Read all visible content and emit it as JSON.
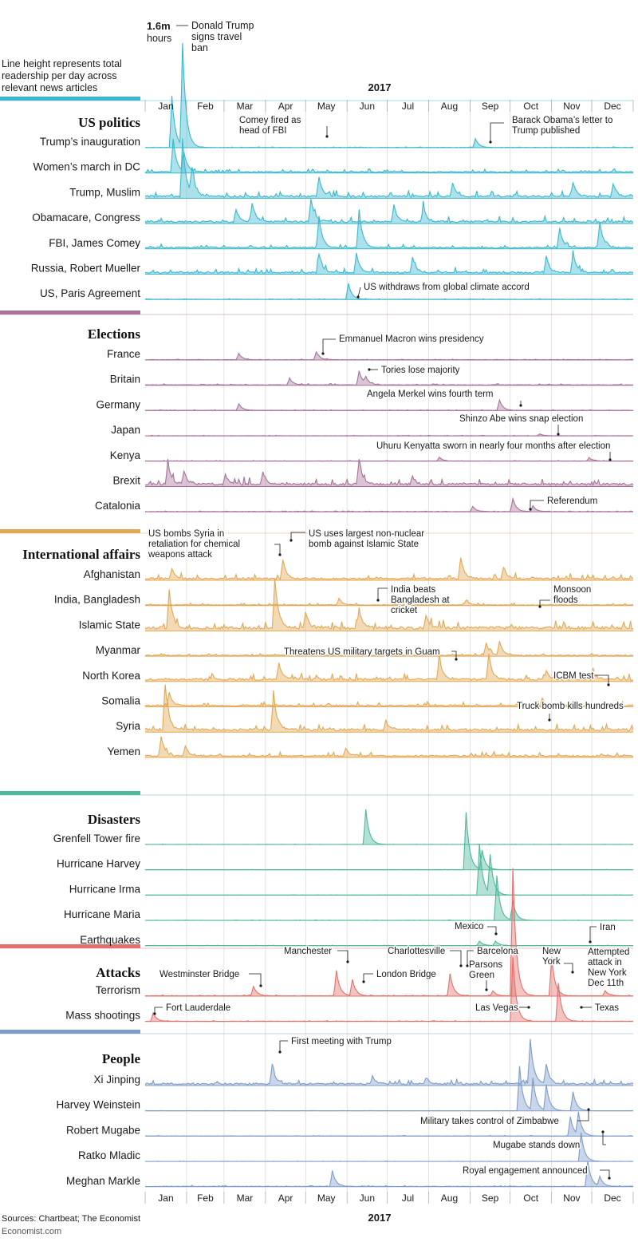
{
  "chart_data": {
    "type": "area",
    "year_label": "2017",
    "months": [
      "Jan",
      "Feb",
      "Mar",
      "Apr",
      "May",
      "Jun",
      "Jul",
      "Aug",
      "Sep",
      "Oct",
      "Nov",
      "Dec"
    ],
    "scale_value": "1.6m",
    "scale_unit": "hours",
    "scale_event": "Donald Trump signs travel ban",
    "note": "Line height represents total readership per day across relevant news articles",
    "source": "Sources: Chartbeat; The Economist",
    "credit": "Economist.com",
    "groups": [
      {
        "title": "US politics",
        "color": "#3ab8cf",
        "series": [
          {
            "name": "Trump’s inauguration",
            "peaks": [
              [
                20,
                8
              ],
              [
                28,
                16
              ],
              [
                247,
                1.4
              ]
            ],
            "noise": 0.05
          },
          {
            "name": "Women’s march in DC",
            "peaks": [
              [
                21,
                5
              ],
              [
                29,
                3
              ]
            ],
            "noise": 0.25
          },
          {
            "name": "Trump, Muslim",
            "peaks": [
              [
                28,
                9
              ],
              [
                35,
                4
              ],
              [
                130,
                3
              ],
              [
                230,
                2
              ],
              [
                320,
                2.2
              ],
              [
                350,
                2
              ]
            ],
            "noise": 0.45
          },
          {
            "name": "Obamacare, Congress",
            "peaks": [
              [
                68,
                2
              ],
              [
                80,
                3
              ],
              [
                124,
                3.5
              ],
              [
                186,
                2.6
              ],
              [
                208,
                2.4
              ]
            ],
            "noise": 0.45
          },
          {
            "name": "FBI, James Comey",
            "peaks": [
              [
                130,
                5
              ],
              [
                160,
                6
              ],
              [
                310,
                3
              ],
              [
                340,
                4
              ]
            ],
            "noise": 0.3
          },
          {
            "name": "Russia, Robert Mueller",
            "peaks": [
              [
                130,
                3
              ],
              [
                158,
                3
              ],
              [
                200,
                2.4
              ],
              [
                300,
                2.5
              ],
              [
                320,
                3
              ]
            ],
            "noise": 0.4
          },
          {
            "name": "US, Paris Agreement",
            "peaks": [
              [
                152,
                2.5
              ]
            ],
            "noise": 0.05
          }
        ]
      },
      {
        "title": "Elections",
        "color": "#a8729a",
        "series": [
          {
            "name": "France",
            "peaks": [
              [
                70,
                1
              ],
              [
                128,
                1.2
              ]
            ],
            "noise": 0.06
          },
          {
            "name": "Britain",
            "peaks": [
              [
                108,
                1
              ],
              [
                160,
                2.2
              ],
              [
                165,
                1
              ]
            ],
            "noise": 0.1
          },
          {
            "name": "Germany",
            "peaks": [
              [
                70,
                1
              ],
              [
                265,
                1.6
              ]
            ],
            "noise": 0.06
          },
          {
            "name": "Japan",
            "peaks": [
              [
                295,
                0.3
              ]
            ],
            "noise": 0.03
          },
          {
            "name": "Kenya",
            "peaks": [
              [
                220,
                0.6
              ],
              [
                332,
                0.5
              ]
            ],
            "noise": 0.04
          },
          {
            "name": "Brexit",
            "peaks": [
              [
                17,
                3.5
              ],
              [
                29,
                2
              ],
              [
                60,
                1.5
              ],
              [
                88,
                2
              ],
              [
                160,
                4
              ],
              [
                200,
                1.2
              ]
            ],
            "noise": 0.55
          },
          {
            "name": "Catalonia",
            "peaks": [
              [
                245,
                0.8
              ],
              [
                275,
                2
              ],
              [
                290,
                0.9
              ]
            ],
            "noise": 0.06
          }
        ]
      },
      {
        "title": "International affairs",
        "color": "#e3a853",
        "series": [
          {
            "name": "Afghanistan",
            "peaks": [
              [
                20,
                1.6
              ],
              [
                103,
                3
              ],
              [
                236,
                3.2
              ],
              [
                268,
                1.8
              ]
            ],
            "noise": 0.4
          },
          {
            "name": "India, Bangladesh",
            "peaks": [
              [
                145,
                1
              ],
              [
                240,
                0.8
              ]
            ],
            "noise": 0.15
          },
          {
            "name": "Islamic State",
            "peaks": [
              [
                18,
                6
              ],
              [
                97,
                8
              ],
              [
                120,
                2.5
              ],
              [
                160,
                3
              ],
              [
                210,
                2
              ]
            ],
            "noise": 0.7
          },
          {
            "name": "Myanmar",
            "peaks": [
              [
                255,
                2
              ],
              [
                265,
                2.2
              ]
            ],
            "noise": 0.2
          },
          {
            "name": "North Korea",
            "peaks": [
              [
                100,
                2.5
              ],
              [
                220,
                3.5
              ],
              [
                257,
                4
              ],
              [
                300,
                1.5
              ],
              [
                335,
                1.2
              ]
            ],
            "noise": 0.5
          },
          {
            "name": "Somalia",
            "peaks": [
              [
                18,
                2
              ],
              [
                297,
                1
              ]
            ],
            "noise": 0.3
          },
          {
            "name": "Syria",
            "peaks": [
              [
                15,
                7
              ],
              [
                96,
                6
              ],
              [
                180,
                1.5
              ]
            ],
            "noise": 0.55
          },
          {
            "name": "Yemen",
            "peaks": [
              [
                12,
                3
              ],
              [
                30,
                1.6
              ],
              [
                150,
                1.3
              ]
            ],
            "noise": 0.35
          }
        ]
      },
      {
        "title": "Disasters",
        "color": "#4db89a",
        "series": [
          {
            "name": "Grenfell Tower fire",
            "peaks": [
              [
                165,
                5.5
              ]
            ],
            "noise": 0.02
          },
          {
            "name": "Hurricane Harvey",
            "peaks": [
              [
                240,
                9
              ],
              [
                252,
                3
              ]
            ],
            "noise": 0.02
          },
          {
            "name": "Hurricane Irma",
            "peaks": [
              [
                250,
                8
              ],
              [
                258,
                6
              ]
            ],
            "noise": 0.02
          },
          {
            "name": "Hurricane Maria",
            "peaks": [
              [
                263,
                7
              ],
              [
                275,
                3
              ]
            ],
            "noise": 0.02
          },
          {
            "name": "Earthquakes",
            "peaks": [
              [
                250,
                0.7
              ],
              [
                262,
                0.7
              ]
            ],
            "noise": 0.03
          }
        ]
      },
      {
        "title": "Attacks",
        "color": "#e2706c",
        "series": [
          {
            "name": "Terrorism",
            "peaks": [
              [
                81,
                1.5
              ],
              [
                143,
                4
              ],
              [
                155,
                2.5
              ],
              [
                228,
                3.5
              ],
              [
                260,
                0.8
              ],
              [
                275,
                20
              ],
              [
                304,
                6
              ],
              [
                344,
                0.8
              ]
            ],
            "noise": 0.08
          },
          {
            "name": "Mass shootings",
            "peaks": [
              [
                6,
                1.3
              ],
              [
                275,
                10
              ],
              [
                309,
                6
              ]
            ],
            "noise": 0.05
          }
        ]
      },
      {
        "title": "People",
        "color": "#7f9cc9",
        "series": [
          {
            "name": "Xi Jinping",
            "peaks": [
              [
                95,
                3
              ],
              [
                170,
                1.2
              ],
              [
                210,
                1
              ],
              [
                288,
                7
              ],
              [
                300,
                3
              ]
            ],
            "noise": 0.4
          },
          {
            "name": "Harvey Weinstein",
            "peaks": [
              [
                280,
                7
              ],
              [
                290,
                5
              ],
              [
                300,
                4
              ],
              [
                320,
                3
              ]
            ],
            "noise": 0.02
          },
          {
            "name": "Robert Mugabe",
            "peaks": [
              [
                318,
                3
              ],
              [
                324,
                3.5
              ]
            ],
            "noise": 0.04
          },
          {
            "name": "Ratko Mladic",
            "peaks": [
              [
                326,
                4.5
              ]
            ],
            "noise": 0.02
          },
          {
            "name": "Meghan Markle",
            "peaks": [
              [
                140,
                2.5
              ],
              [
                331,
                4
              ],
              [
                340,
                1.5
              ]
            ],
            "noise": 0.08
          }
        ]
      }
    ],
    "annotations": [
      {
        "text": "Comey fired as head of FBI"
      },
      {
        "text": "Barack Obama’s letter to Trump published"
      },
      {
        "text": "US withdraws from global climate accord"
      },
      {
        "text": "Emmanuel Macron wins presidency"
      },
      {
        "text": "Tories lose majority"
      },
      {
        "text": "Angela Merkel wins fourth term"
      },
      {
        "text": "Shinzo Abe wins snap election"
      },
      {
        "text": "Uhuru Kenyatta sworn in nearly four months after election"
      },
      {
        "text": "Referendum"
      },
      {
        "text": "US bombs Syria in retaliation for chemical weapons attack"
      },
      {
        "text": "US uses largest non-nuclear bomb against Islamic State"
      },
      {
        "text": "India beats Bangladesh at cricket"
      },
      {
        "text": "Monsoon floods"
      },
      {
        "text": "Threatens US military targets in Guam"
      },
      {
        "text": "ICBM test"
      },
      {
        "text": "Truck bomb kills hundreds"
      },
      {
        "text": "Mexico"
      },
      {
        "text": "Iran"
      },
      {
        "text": "Westminster Bridge"
      },
      {
        "text": "Manchester"
      },
      {
        "text": "London Bridge"
      },
      {
        "text": "Charlottesville"
      },
      {
        "text": "Barcelona"
      },
      {
        "text": "Parsons Green"
      },
      {
        "text": "New York"
      },
      {
        "text": "Attempted attack in New York Dec 11th"
      },
      {
        "text": "Fort Lauderdale"
      },
      {
        "text": "Las Vegas"
      },
      {
        "text": "Texas"
      },
      {
        "text": "First meeting with Trump"
      },
      {
        "text": "Military takes control of Zimbabwe"
      },
      {
        "text": "Mugabe stands down"
      },
      {
        "text": "Royal engagement announced"
      }
    ]
  }
}
